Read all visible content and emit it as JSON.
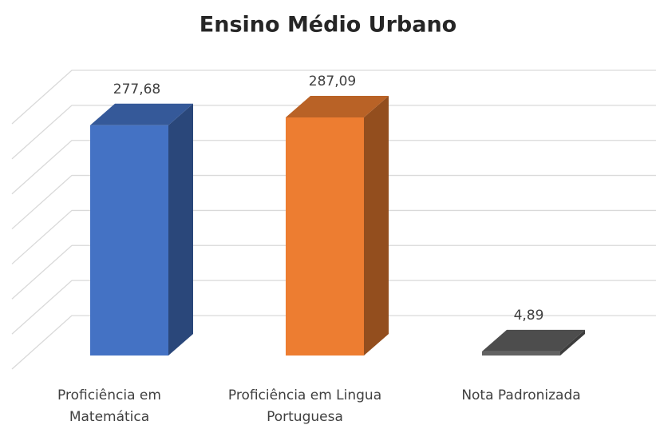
{
  "chart_data": {
    "type": "bar3d",
    "title": "Ensino Médio Urbano",
    "categories": [
      "Proficiência em Matemática",
      "Proficiência em Lingua Portuguesa",
      "Nota Padronizada"
    ],
    "values": [
      277.68,
      287.09,
      4.89
    ],
    "value_labels": [
      "277,68",
      "287,09",
      "4,89"
    ],
    "colors": [
      "#4472c4",
      "#ed7d31",
      "#636363"
    ],
    "ylim": [
      0,
      350
    ],
    "yticks": [
      0,
      50,
      100,
      150,
      200,
      250,
      300,
      350
    ],
    "grid": true
  }
}
